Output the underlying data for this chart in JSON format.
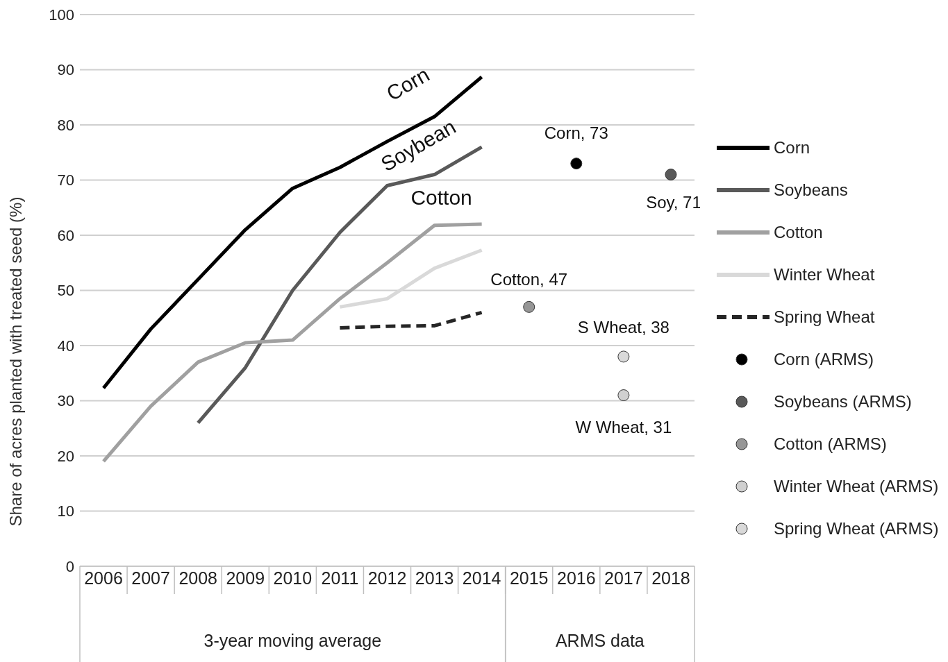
{
  "chart_data": {
    "type": "line",
    "ylabel": "Share of acres planted with treated seed (%)",
    "categories": [
      "2006",
      "2007",
      "2008",
      "2009",
      "2010",
      "2011",
      "2012",
      "2013",
      "2014",
      "2015",
      "2016",
      "2017",
      "2018"
    ],
    "series": [
      {
        "name": "Corn",
        "color": "#000000",
        "line_style": "solid",
        "marker": "none",
        "values": [
          32.3,
          43,
          52,
          61,
          68.5,
          72.3,
          77,
          81.5,
          88.7,
          null,
          null,
          null,
          null
        ]
      },
      {
        "name": "Soybeans",
        "color": "#595959",
        "line_style": "solid",
        "marker": "none",
        "values": [
          null,
          null,
          26,
          36,
          50,
          60.5,
          69,
          71,
          76,
          null,
          null,
          null,
          null
        ]
      },
      {
        "name": "Cotton",
        "color": "#a0a0a0",
        "line_style": "solid",
        "marker": "none",
        "values": [
          19,
          29,
          37,
          40.5,
          41,
          48.5,
          55,
          61.8,
          62,
          null,
          null,
          null,
          null
        ]
      },
      {
        "name": "Winter Wheat",
        "color": "#d9d9d9",
        "line_style": "solid",
        "marker": "none",
        "values": [
          null,
          null,
          null,
          null,
          null,
          47,
          48.5,
          54,
          57.3,
          null,
          null,
          null,
          null
        ]
      },
      {
        "name": "Spring Wheat",
        "color": "#262626",
        "line_style": "dashed",
        "marker": "none",
        "values": [
          null,
          null,
          null,
          null,
          null,
          43.2,
          43.5,
          43.6,
          46,
          null,
          null,
          null,
          null
        ]
      },
      {
        "name": "Corn (ARMS)",
        "type": "scatter",
        "color": "#000000",
        "marker": "circle",
        "values": [
          null,
          null,
          null,
          null,
          null,
          null,
          null,
          null,
          null,
          null,
          73,
          null,
          null
        ]
      },
      {
        "name": "Soybeans (ARMS)",
        "type": "scatter",
        "color": "#595959",
        "marker": "circle",
        "values": [
          null,
          null,
          null,
          null,
          null,
          null,
          null,
          null,
          null,
          null,
          null,
          null,
          71
        ]
      },
      {
        "name": "Cotton (ARMS)",
        "type": "scatter",
        "color": "#969696",
        "marker": "circle",
        "values": [
          null,
          null,
          null,
          null,
          null,
          null,
          null,
          null,
          null,
          47,
          null,
          null,
          null
        ]
      },
      {
        "name": "Winter Wheat (ARMS)",
        "type": "scatter",
        "color": "#d0d0d0",
        "marker": "circle",
        "values": [
          null,
          null,
          null,
          null,
          null,
          null,
          null,
          null,
          null,
          null,
          null,
          31,
          null
        ]
      },
      {
        "name": "Spring Wheat (ARMS)",
        "type": "scatter",
        "color": "#d9d9d9",
        "marker": "circle",
        "values": [
          null,
          null,
          null,
          null,
          null,
          null,
          null,
          null,
          null,
          null,
          null,
          38,
          null
        ]
      }
    ],
    "ylim": [
      0,
      100
    ],
    "yticks": [
      0,
      10,
      20,
      30,
      40,
      50,
      60,
      70,
      80,
      90,
      100
    ],
    "grid": "y",
    "legend": "right",
    "annotations": [
      "Corn",
      "Soybean",
      "Cotton",
      {
        "text": "Corn, 73",
        "x": "2016",
        "y": 73
      },
      {
        "text": "Soy, 71",
        "x": "2018",
        "y": 71
      },
      {
        "text": "Cotton, 47",
        "x": "2015",
        "y": 47
      },
      {
        "text": "S Wheat, 38",
        "x": "2017",
        "y": 38
      },
      {
        "text": "W Wheat, 31",
        "x": "2017",
        "y": 31
      },
      "3-year moving average",
      "ARMS data"
    ]
  }
}
